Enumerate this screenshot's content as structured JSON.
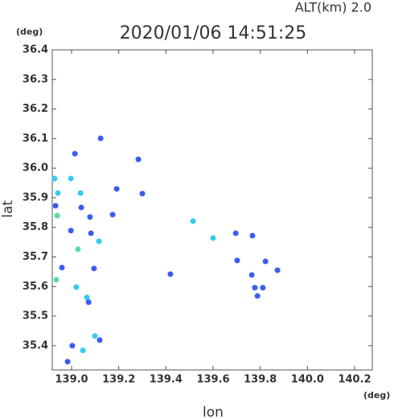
{
  "chart_data": {
    "type": "scatter",
    "title": "2020/01/06 14:51:25",
    "subtitle": "ALT(km)  2.0",
    "xlabel": "lon",
    "ylabel": "lat",
    "xunit": "(deg)",
    "yunit": "(deg)",
    "xlim": [
      138.918,
      140.275
    ],
    "ylim": [
      35.318,
      36.4
    ],
    "xticks": [
      {
        "value": 139,
        "label": "139.0"
      },
      139.2,
      139.4,
      139.6,
      139.8,
      {
        "value": 140,
        "label": "140.0"
      },
      140.2
    ],
    "yticks": [
      35.4,
      35.5,
      35.6,
      35.7,
      35.8,
      35.9,
      {
        "value": 36,
        "label": "36.0"
      },
      36.1,
      36.2,
      36.3,
      36.4
    ],
    "x": [
      139.123,
      139.014,
      138.928,
      138.942,
      138.932,
      138.939,
      138.997,
      139.038,
      139.041,
      139.078,
      138.997,
      139.027,
      139.082,
      139.116,
      138.959,
      138.935,
      139.095,
      139.02,
      139.065,
      139.072,
      139.099,
      139.119,
      139.003,
      139.048,
      138.983,
      139.191,
      139.174,
      139.283,
      139.3,
      139.515,
      139.6,
      139.696,
      139.767,
      139.419,
      139.702,
      139.777,
      139.811,
      139.788,
      139.822,
      139.873,
      139.764
    ],
    "values": [
      36.101,
      36.049,
      35.965,
      35.916,
      35.873,
      35.84,
      35.965,
      35.916,
      35.867,
      35.835,
      35.789,
      35.726,
      35.78,
      35.753,
      35.664,
      35.623,
      35.661,
      35.598,
      35.563,
      35.547,
      35.433,
      35.419,
      35.4,
      35.384,
      35.346,
      35.93,
      35.843,
      36.03,
      35.914,
      35.821,
      35.764,
      35.78,
      35.772,
      35.642,
      35.688,
      35.596,
      35.596,
      35.568,
      35.685,
      35.655,
      35.639
    ],
    "colors": [
      "#3a5cf0",
      "#3a5cf0",
      "#33ccee",
      "#33ccee",
      "#3a5cf0",
      "#55e0a0",
      "#33ccee",
      "#33ccee",
      "#3a5cf0",
      "#3a5cf0",
      "#3a5cf0",
      "#55e0a0",
      "#3a5cf0",
      "#33ccee",
      "#3a5cf0",
      "#55e0a0",
      "#3a5cf0",
      "#33ccee",
      "#33ccee",
      "#3a5cf0",
      "#33ccee",
      "#3a5cf0",
      "#3a5cf0",
      "#33ccee",
      "#3a5cf0",
      "#3a5cf0",
      "#3a5cf0",
      "#3a5cf0",
      "#3a5cf0",
      "#33ccee",
      "#33ccee",
      "#3a5cf0",
      "#3a5cf0",
      "#3a5cf0",
      "#3a5cf0",
      "#3a5cf0",
      "#3a5cf0",
      "#3a5cf0",
      "#3a5cf0",
      "#3a5cf0",
      "#3a5cf0"
    ]
  }
}
